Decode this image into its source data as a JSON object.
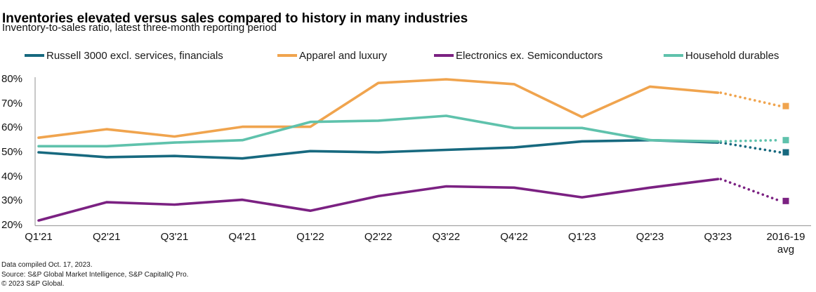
{
  "title": "Inventories elevated versus sales compared to history in many industries",
  "subtitle": "Inventory-to-sales ratio, latest three-month reporting period",
  "footer": {
    "compiled": "Data compiled Oct. 17, 2023.",
    "source": "Source: S&P Global Market Intelligence, S&P CapitalIQ Pro.",
    "copyright": "© 2023 S&P Global."
  },
  "chart_data": {
    "type": "line",
    "categories": [
      "Q1'21",
      "Q2'21",
      "Q3'21",
      "Q4'21",
      "Q1'22",
      "Q2'22",
      "Q3'22",
      "Q4'22",
      "Q1'23",
      "Q2'23",
      "Q3'23"
    ],
    "avg_label": "2016-19\navg",
    "series": [
      {
        "name": "Russell 3000 excl. services, financials",
        "color": "#17697F",
        "values": [
          50,
          48,
          48.5,
          47.5,
          50.5,
          50,
          51,
          52,
          54.5,
          55,
          54
        ],
        "avg_2016_19": 50
      },
      {
        "name": "Apparel and luxury",
        "color": "#F0A44E",
        "values": [
          56,
          59.5,
          56.5,
          60.5,
          60.5,
          78.5,
          80,
          78,
          64.5,
          77,
          74.5
        ],
        "avg_2016_19": 69
      },
      {
        "name": "Electronics ex. Semiconductors",
        "color": "#7B2182",
        "values": [
          22,
          29.5,
          28.5,
          30.5,
          26,
          32,
          36,
          35.5,
          31.5,
          35.5,
          39
        ],
        "avg_2016_19": 30
      },
      {
        "name": "Household durables",
        "color": "#5FC2AC",
        "values": [
          52.5,
          52.5,
          54,
          55,
          62.5,
          63,
          65,
          60,
          60,
          55,
          54.5
        ],
        "avg_2016_19": 55
      }
    ],
    "y_tick_labels": [
      "80%",
      "70%",
      "60%",
      "50%",
      "40%",
      "30%",
      "20%"
    ],
    "y_tick_values": [
      80,
      70,
      60,
      50,
      40,
      30,
      20
    ],
    "ylim": [
      20,
      80
    ],
    "legend_position": "top",
    "grid": false,
    "axis_color": "#A3A3A3",
    "note": "Segment from Q3'23 to 2016-19 avg drawn dotted, ending in a square marker"
  }
}
